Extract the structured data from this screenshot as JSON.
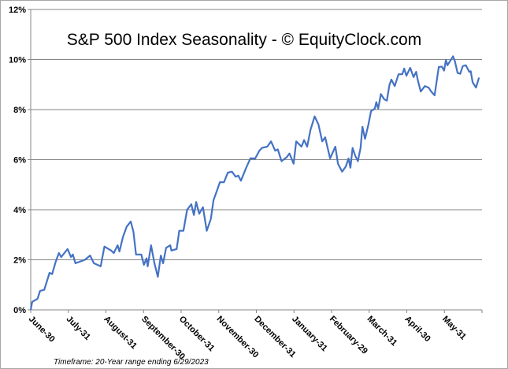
{
  "chart_data": {
    "type": "line",
    "title": "S&P 500 Index Seasonality - © EquityClock.com",
    "footnote": "Timeframe:  20-Year  range ending 6/29/2023",
    "xlabel": "",
    "ylabel": "",
    "x_unit": "months since June-30",
    "xlim": [
      0,
      12
    ],
    "ylim": [
      0,
      12
    ],
    "grid": true,
    "y_ticks": [
      0,
      2,
      4,
      6,
      8,
      10,
      12
    ],
    "y_tick_labels": [
      "0%",
      "2%",
      "4%",
      "6%",
      "8%",
      "10%",
      "12%"
    ],
    "x_tick_labels": [
      "June-30",
      "July-31",
      "August-31",
      "September-30",
      "October-31",
      "November-30",
      "December-31",
      "January-31",
      "February-29",
      "March-31",
      "April-30",
      "May-31"
    ],
    "series": [
      {
        "name": "S&P 500 Index Seasonality",
        "color": "#4472c4",
        "x": [
          0,
          0.04,
          0.18,
          0.25,
          0.36,
          0.5,
          0.57,
          0.67,
          0.75,
          0.81,
          0.98,
          1.07,
          1.12,
          1.19,
          1.44,
          1.58,
          1.68,
          1.86,
          1.96,
          2.14,
          2.21,
          2.31,
          2.36,
          2.45,
          2.55,
          2.66,
          2.73,
          2.8,
          2.94,
          3.01,
          3.08,
          3.11,
          3.2,
          3.29,
          3.38,
          3.46,
          3.52,
          3.6,
          3.71,
          3.74,
          3.88,
          3.95,
          4.06,
          4.16,
          4.27,
          4.34,
          4.4,
          4.48,
          4.58,
          4.68,
          4.79,
          4.86,
          4.96,
          5.03,
          5.14,
          5.24,
          5.35,
          5.45,
          5.52,
          5.59,
          5.73,
          5.84,
          5.97,
          6.08,
          6.15,
          6.29,
          6.39,
          6.5,
          6.57,
          6.67,
          6.81,
          6.88,
          6.99,
          7.06,
          7.2,
          7.27,
          7.35,
          7.44,
          7.55,
          7.65,
          7.75,
          7.83,
          7.96,
          8.1,
          8.17,
          8.28,
          8.38,
          8.45,
          8.5,
          8.56,
          8.63,
          8.7,
          8.77,
          8.82,
          8.89,
          8.98,
          9.05,
          9.15,
          9.19,
          9.24,
          9.31,
          9.4,
          9.47,
          9.54,
          9.59,
          9.68,
          9.78,
          9.88,
          9.93,
          9.99,
          10.09,
          10.18,
          10.25,
          10.29,
          10.37,
          10.48,
          10.58,
          10.65,
          10.74,
          10.85,
          10.93,
          10.99,
          11.04,
          11.08,
          11.23,
          11.28,
          11.35,
          11.42,
          11.49,
          11.57,
          11.66,
          11.7,
          11.75,
          11.84,
          11.92
        ],
        "y": [
          0,
          0.32,
          0.44,
          0.76,
          0.8,
          1.48,
          1.43,
          1.95,
          2.27,
          2.11,
          2.43,
          2.11,
          2.21,
          1.86,
          2.0,
          2.17,
          1.86,
          1.74,
          2.53,
          2.37,
          2.27,
          2.58,
          2.33,
          2.9,
          3.32,
          3.53,
          3.12,
          2.21,
          2.21,
          1.8,
          2.06,
          1.74,
          2.58,
          1.86,
          1.32,
          2.17,
          1.86,
          2.48,
          2.58,
          2.37,
          2.43,
          3.16,
          3.16,
          4.0,
          4.22,
          3.79,
          4.31,
          3.84,
          4.1,
          3.16,
          3.63,
          4.38,
          4.79,
          5.1,
          5.1,
          5.48,
          5.52,
          5.32,
          5.36,
          5.16,
          5.68,
          6.05,
          6.05,
          6.36,
          6.47,
          6.52,
          6.73,
          6.36,
          6.41,
          5.94,
          6.1,
          6.25,
          5.84,
          6.73,
          6.52,
          6.78,
          6.52,
          7.2,
          7.73,
          7.41,
          6.73,
          6.89,
          6.05,
          6.52,
          5.84,
          5.52,
          5.73,
          6.05,
          5.68,
          6.47,
          6.15,
          5.94,
          6.47,
          7.31,
          6.83,
          7.41,
          7.94,
          8.04,
          8.3,
          8.04,
          8.62,
          8.41,
          8.36,
          8.99,
          9.2,
          8.94,
          9.41,
          9.41,
          9.64,
          9.35,
          9.67,
          9.3,
          9.51,
          9.2,
          8.72,
          8.94,
          8.88,
          8.72,
          8.57,
          9.7,
          9.72,
          9.56,
          9.98,
          9.77,
          10.13,
          9.93,
          9.46,
          9.43,
          9.74,
          9.77,
          9.51,
          9.53,
          9.09,
          8.88,
          9.28
        ]
      }
    ]
  }
}
